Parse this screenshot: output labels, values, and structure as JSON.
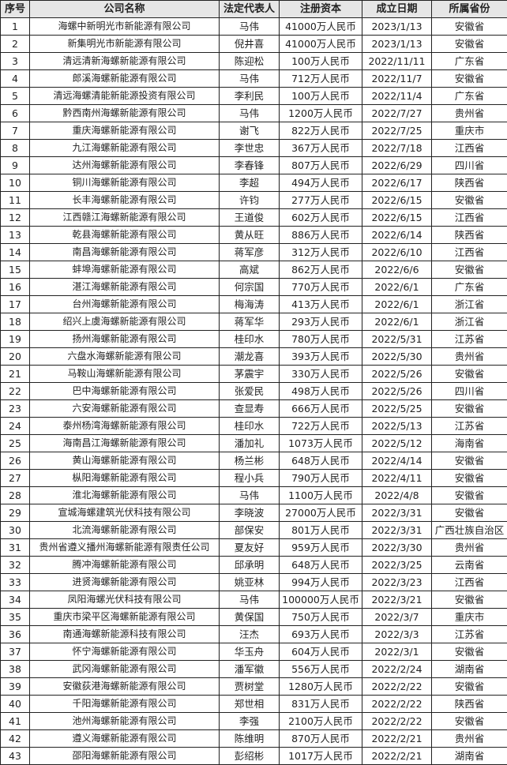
{
  "headers": [
    "序号",
    "公司名称",
    "法定代表人",
    "注册资本",
    "成立日期",
    "所属省份"
  ],
  "rows": [
    [
      "1",
      "海螺中新明光市新能源有限公司",
      "马伟",
      "41000万人民币",
      "2023/1/13",
      "安徽省"
    ],
    [
      "2",
      "新集明光市新能源有限公司",
      "倪井喜",
      "41000万人民币",
      "2023/1/13",
      "安徽省"
    ],
    [
      "3",
      "清远清新海螺新能源有限公司",
      "陈迎松",
      "100万人民币",
      "2022/11/11",
      "广东省"
    ],
    [
      "4",
      "郎溪海螺新能源有限公司",
      "马伟",
      "712万人民币",
      "2022/11/7",
      "安徽省"
    ],
    [
      "5",
      "清远海螺清能新能源投资有限公司",
      "李利民",
      "100万人民币",
      "2022/11/4",
      "广东省"
    ],
    [
      "6",
      "黔西南州海螺新能源有限公司",
      "马伟",
      "1200万人民币",
      "2022/7/27",
      "贵州省"
    ],
    [
      "7",
      "重庆海螺新能源有限公司",
      "谢飞",
      "822万人民币",
      "2022/7/25",
      "重庆市"
    ],
    [
      "8",
      "九江海螺新能源有限公司",
      "李世忠",
      "367万人民币",
      "2022/7/18",
      "江西省"
    ],
    [
      "9",
      "达州海螺新能源有限公司",
      "李春锋",
      "807万人民币",
      "2022/6/29",
      "四川省"
    ],
    [
      "10",
      "铜川海螺新能源有限公司",
      "李超",
      "494万人民币",
      "2022/6/17",
      "陕西省"
    ],
    [
      "11",
      "长丰海螺新能源有限公司",
      "许钧",
      "277万人民币",
      "2022/6/15",
      "安徽省"
    ],
    [
      "12",
      "江西赣江海螺新能源有限公司",
      "王道俊",
      "602万人民币",
      "2022/6/15",
      "江西省"
    ],
    [
      "13",
      "乾县海螺新能源有限公司",
      "黄从旺",
      "886万人民币",
      "2022/6/14",
      "陕西省"
    ],
    [
      "14",
      "南昌海螺新能源有限公司",
      "蒋军彦",
      "312万人民币",
      "2022/6/10",
      "江西省"
    ],
    [
      "15",
      "蚌埠海螺新能源有限公司",
      "高斌",
      "862万人民币",
      "2022/6/6",
      "安徽省"
    ],
    [
      "16",
      "湛江海螺新能源有限公司",
      "何宗国",
      "770万人民币",
      "2022/6/1",
      "广东省"
    ],
    [
      "17",
      "台州海螺新能源有限公司",
      "梅海涛",
      "413万人民币",
      "2022/6/1",
      "浙江省"
    ],
    [
      "18",
      "绍兴上虞海螺新能源有限公司",
      "蒋军华",
      "293万人民币",
      "2022/6/1",
      "浙江省"
    ],
    [
      "19",
      "扬州海螺新能源有限公司",
      "桂印水",
      "780万人民币",
      "2022/5/31",
      "江苏省"
    ],
    [
      "20",
      "六盘水海螺新能源有限公司",
      "潮龙喜",
      "393万人民币",
      "2022/5/30",
      "贵州省"
    ],
    [
      "21",
      "马鞍山海螺新能源有限公司",
      "茅震宇",
      "330万人民币",
      "2022/5/26",
      "安徽省"
    ],
    [
      "22",
      "巴中海螺新能源有限公司",
      "张爱民",
      "498万人民币",
      "2022/5/26",
      "四川省"
    ],
    [
      "23",
      "六安海螺新能源有限公司",
      "查显寿",
      "666万人民币",
      "2022/5/25",
      "安徽省"
    ],
    [
      "24",
      "泰州杨湾海螺新能源有限公司",
      "桂印水",
      "722万人民币",
      "2022/5/13",
      "江苏省"
    ],
    [
      "25",
      "海南昌江海螺新能源有限公司",
      "潘加礼",
      "1073万人民币",
      "2022/5/12",
      "海南省"
    ],
    [
      "26",
      "黄山海螺新能源有限公司",
      "杨兰彬",
      "648万人民币",
      "2022/4/14",
      "安徽省"
    ],
    [
      "27",
      "枞阳海螺新能源有限公司",
      "程小兵",
      "790万人民币",
      "2022/4/11",
      "安徽省"
    ],
    [
      "28",
      "淮北海螺新能源有限公司",
      "马伟",
      "1100万人民币",
      "2022/4/8",
      "安徽省"
    ],
    [
      "29",
      "宣城海螺建筑光伏科技有限公司",
      "李晓波",
      "27000万人民币",
      "2022/3/31",
      "安徽省"
    ],
    [
      "30",
      "北流海螺新能源有限公司",
      "部保安",
      "801万人民币",
      "2022/3/31",
      "广西壮族自治区"
    ],
    [
      "31",
      "贵州省遵义播州海螺新能源有限责任公司",
      "夏友好",
      "959万人民币",
      "2022/3/30",
      "贵州省"
    ],
    [
      "32",
      "腾冲海螺新能源有限公司",
      "邱承明",
      "648万人民币",
      "2022/3/25",
      "云南省"
    ],
    [
      "33",
      "进贤海螺新能源有限公司",
      "姚亚林",
      "994万人民币",
      "2022/3/23",
      "江西省"
    ],
    [
      "34",
      "凤阳海螺光伏科技有限公司",
      "马伟",
      "100000万人民币",
      "2022/3/21",
      "安徽省"
    ],
    [
      "35",
      "重庆市梁平区海螺新能源有限公司",
      "黄保国",
      "750万人民币",
      "2022/3/7",
      "重庆市"
    ],
    [
      "36",
      "南通海螺新能源科技有限公司",
      "汪杰",
      "693万人民币",
      "2022/3/3",
      "江苏省"
    ],
    [
      "37",
      "怀宁海螺新能源有限公司",
      "华玉舟",
      "604万人民币",
      "2022/3/1",
      "安徽省"
    ],
    [
      "38",
      "武冈海螺新能源有限公司",
      "潘军徽",
      "556万人民币",
      "2022/2/24",
      "湖南省"
    ],
    [
      "39",
      "安徽荻港海螺新能源有限公司",
      "贾树堂",
      "1280万人民币",
      "2022/2/22",
      "安徽省"
    ],
    [
      "40",
      "千阳海螺新能源有限公司",
      "郑世相",
      "831万人民币",
      "2022/2/22",
      "陕西省"
    ],
    [
      "41",
      "池州海螺新能源有限公司",
      "李强",
      "2100万人民币",
      "2022/2/22",
      "安徽省"
    ],
    [
      "42",
      "遵义海螺新能源有限公司",
      "陈维明",
      "870万人民币",
      "2022/2/21",
      "贵州省"
    ],
    [
      "43",
      "邵阳海螺新能源有限公司",
      "彭绍彬",
      "1017万人民币",
      "2022/2/21",
      "湖南省"
    ]
  ]
}
